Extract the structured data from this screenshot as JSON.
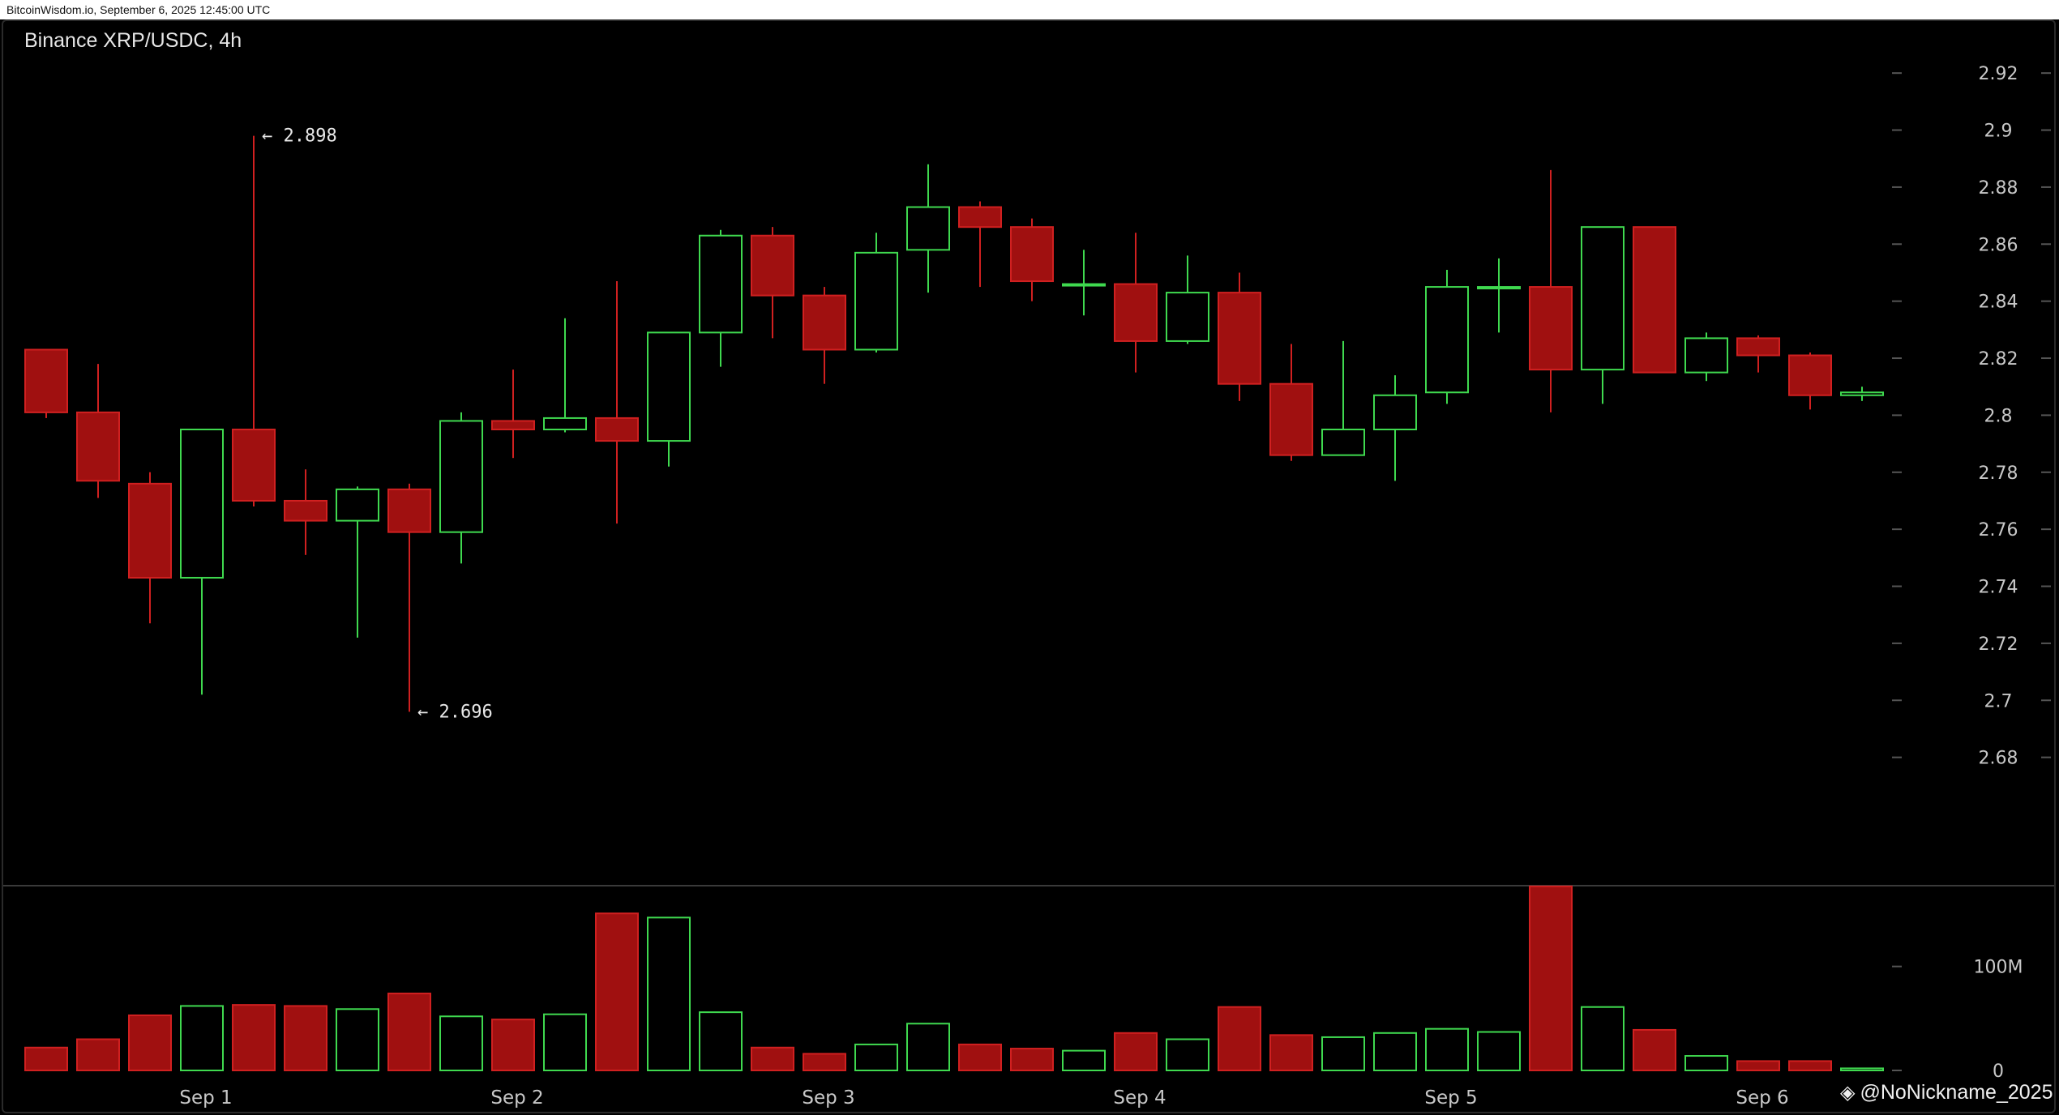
{
  "header": {
    "source_line": "BitcoinWisdom.io, September 6, 2025 12:45:00 UTC"
  },
  "watermark": {
    "logo_icon": "binance-logo-icon",
    "text": "@NoNickname_2025"
  },
  "colors": {
    "up": "#3fd94f",
    "down": "#a01010",
    "down_edge": "#d02020",
    "axis_text": "#c8c8c8",
    "background": "#000000"
  },
  "chart_data": {
    "type": "candlestick",
    "title": "Binance XRP/USDC, 4h",
    "price_axis": {
      "ylim": [
        2.66,
        2.93
      ],
      "ticks": [
        2.68,
        2.7,
        2.72,
        2.74,
        2.76,
        2.78,
        2.8,
        2.82,
        2.84,
        2.86,
        2.88,
        2.9,
        2.92
      ],
      "tick_labels": [
        "2.68",
        "2.7",
        "2.72",
        "2.74",
        "2.76",
        "2.78",
        "2.8",
        "2.82",
        "2.84",
        "2.86",
        "2.88",
        "2.9",
        "2.92"
      ]
    },
    "volume_axis": {
      "ylim": [
        0,
        180
      ],
      "unit": "M",
      "ticks": [
        0,
        100
      ],
      "tick_labels": [
        "0",
        "100M"
      ]
    },
    "x_labels": [
      {
        "label": "Sep 1",
        "index": 3
      },
      {
        "label": "Sep 2",
        "index": 9
      },
      {
        "label": "Sep 3",
        "index": 15
      },
      {
        "label": "Sep 4",
        "index": 21
      },
      {
        "label": "Sep 5",
        "index": 27
      },
      {
        "label": "Sep 6",
        "index": 33
      }
    ],
    "annotations": [
      {
        "text": "← 2.898",
        "index": 4,
        "price": 2.898
      },
      {
        "text": "← 2.696",
        "index": 7,
        "price": 2.696
      }
    ],
    "candles": [
      {
        "o": 2.823,
        "h": 2.823,
        "l": 2.799,
        "c": 2.801,
        "v": 22
      },
      {
        "o": 2.801,
        "h": 2.818,
        "l": 2.771,
        "c": 2.777,
        "v": 30
      },
      {
        "o": 2.776,
        "h": 2.78,
        "l": 2.727,
        "c": 2.743,
        "v": 53
      },
      {
        "o": 2.743,
        "h": 2.795,
        "l": 2.702,
        "c": 2.795,
        "v": 62
      },
      {
        "o": 2.795,
        "h": 2.898,
        "l": 2.768,
        "c": 2.77,
        "v": 63
      },
      {
        "o": 2.77,
        "h": 2.781,
        "l": 2.751,
        "c": 2.763,
        "v": 62
      },
      {
        "o": 2.763,
        "h": 2.775,
        "l": 2.722,
        "c": 2.774,
        "v": 59
      },
      {
        "o": 2.774,
        "h": 2.776,
        "l": 2.696,
        "c": 2.759,
        "v": 74
      },
      {
        "o": 2.759,
        "h": 2.801,
        "l": 2.748,
        "c": 2.798,
        "v": 52
      },
      {
        "o": 2.798,
        "h": 2.816,
        "l": 2.785,
        "c": 2.795,
        "v": 49
      },
      {
        "o": 2.795,
        "h": 2.834,
        "l": 2.794,
        "c": 2.799,
        "v": 54
      },
      {
        "o": 2.799,
        "h": 2.847,
        "l": 2.762,
        "c": 2.791,
        "v": 151
      },
      {
        "o": 2.791,
        "h": 2.829,
        "l": 2.782,
        "c": 2.829,
        "v": 147
      },
      {
        "o": 2.829,
        "h": 2.865,
        "l": 2.817,
        "c": 2.863,
        "v": 56
      },
      {
        "o": 2.863,
        "h": 2.866,
        "l": 2.827,
        "c": 2.842,
        "v": 22
      },
      {
        "o": 2.842,
        "h": 2.845,
        "l": 2.811,
        "c": 2.823,
        "v": 16
      },
      {
        "o": 2.823,
        "h": 2.864,
        "l": 2.822,
        "c": 2.857,
        "v": 25
      },
      {
        "o": 2.858,
        "h": 2.888,
        "l": 2.843,
        "c": 2.873,
        "v": 45
      },
      {
        "o": 2.873,
        "h": 2.875,
        "l": 2.845,
        "c": 2.866,
        "v": 25
      },
      {
        "o": 2.866,
        "h": 2.869,
        "l": 2.84,
        "c": 2.847,
        "v": 21
      },
      {
        "o": 2.846,
        "h": 2.858,
        "l": 2.835,
        "c": 2.846,
        "v": 19
      },
      {
        "o": 2.846,
        "h": 2.864,
        "l": 2.815,
        "c": 2.826,
        "v": 36
      },
      {
        "o": 2.826,
        "h": 2.856,
        "l": 2.825,
        "c": 2.843,
        "v": 30
      },
      {
        "o": 2.843,
        "h": 2.85,
        "l": 2.805,
        "c": 2.811,
        "v": 61
      },
      {
        "o": 2.811,
        "h": 2.825,
        "l": 2.784,
        "c": 2.786,
        "v": 34
      },
      {
        "o": 2.786,
        "h": 2.826,
        "l": 2.786,
        "c": 2.795,
        "v": 32
      },
      {
        "o": 2.795,
        "h": 2.814,
        "l": 2.777,
        "c": 2.807,
        "v": 36
      },
      {
        "o": 2.808,
        "h": 2.851,
        "l": 2.804,
        "c": 2.845,
        "v": 40
      },
      {
        "o": 2.845,
        "h": 2.855,
        "l": 2.829,
        "c": 2.845,
        "v": 37
      },
      {
        "o": 2.845,
        "h": 2.886,
        "l": 2.801,
        "c": 2.816,
        "v": 177
      },
      {
        "o": 2.816,
        "h": 2.866,
        "l": 2.804,
        "c": 2.866,
        "v": 61
      },
      {
        "o": 2.866,
        "h": 2.866,
        "l": 2.815,
        "c": 2.815,
        "v": 39
      },
      {
        "o": 2.815,
        "h": 2.829,
        "l": 2.812,
        "c": 2.827,
        "v": 14
      },
      {
        "o": 2.827,
        "h": 2.828,
        "l": 2.815,
        "c": 2.821,
        "v": 9
      },
      {
        "o": 2.821,
        "h": 2.822,
        "l": 2.802,
        "c": 2.807,
        "v": 9
      },
      {
        "o": 2.807,
        "h": 2.81,
        "l": 2.805,
        "c": 2.808,
        "v": 2
      }
    ]
  }
}
